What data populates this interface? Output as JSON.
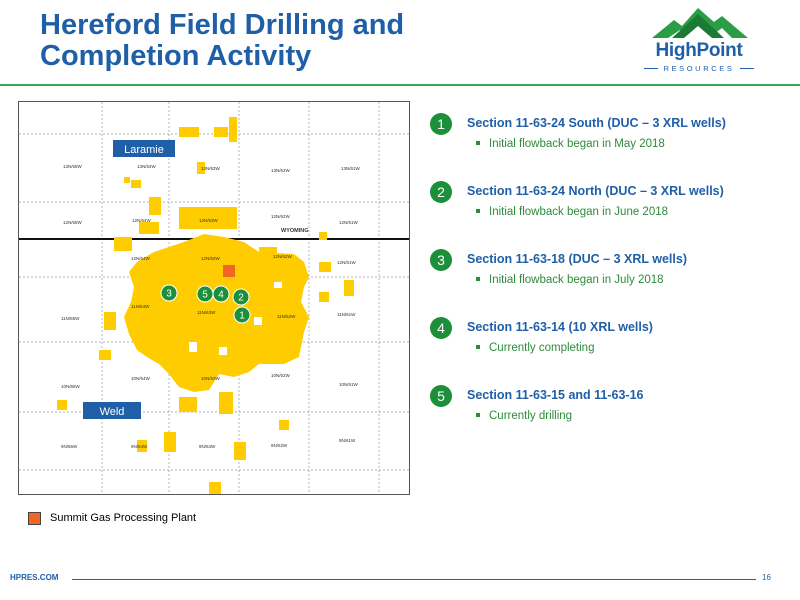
{
  "slide": {
    "title_line1": "Hereford Field Drilling and",
    "title_line2": "Completion Activity",
    "footer_url": "HPRES.COM",
    "page_number": "16"
  },
  "logo": {
    "brand": "HighPoint",
    "sub": "RESOURCES"
  },
  "colors": {
    "title_blue": "#1f5fa8",
    "accent_green": "#34a853",
    "badge_green": "#1c8f3a",
    "acreage_yellow": "#ffcc00",
    "plant_orange": "#f26522"
  },
  "map": {
    "county_labels": [
      "Laramie",
      "Weld"
    ],
    "state_label": "WYOMING",
    "markers": [
      "1",
      "2",
      "3",
      "4",
      "5"
    ],
    "township_labels": [
      "13N/65W",
      "13N/64W",
      "13N/63W",
      "13N/62W",
      "13N/61W",
      "12N/65W",
      "12N/64W",
      "12N/63W",
      "12N/62W",
      "12N/61W",
      "12N/64W",
      "12N/63W",
      "12N/62W",
      "12N/61W",
      "11N/65W",
      "11N/64W",
      "11N/63W",
      "11N/62W",
      "11N/61W",
      "10N/65W",
      "10N/64W",
      "10N/63W",
      "10N/62W",
      "10N/61W",
      "9N/65W",
      "9N/64W",
      "9N/63W",
      "9N/62W",
      "9N/61W"
    ]
  },
  "legend": {
    "label": "Summit Gas Processing Plant",
    "icon": "orange-square"
  },
  "activity": [
    {
      "number": "1",
      "heading": "Section 11-63-24 South (DUC – 3 XRL wells)",
      "detail": "Initial flowback began in May 2018"
    },
    {
      "number": "2",
      "heading": "Section 11-63-24 North (DUC – 3 XRL wells)",
      "detail": "Initial flowback began in June 2018"
    },
    {
      "number": "3",
      "heading": "Section 11-63-18 (DUC – 3 XRL wells)",
      "detail": "Initial flowback began in July 2018"
    },
    {
      "number": "4",
      "heading": "Section 11-63-14 (10 XRL wells)",
      "detail": "Currently completing"
    },
    {
      "number": "5",
      "heading": "Section 11-63-15 and 11-63-16",
      "detail": "Currently drilling"
    }
  ]
}
